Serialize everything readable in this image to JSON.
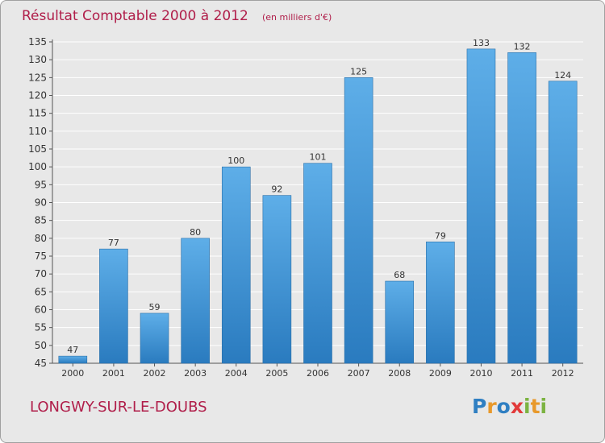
{
  "commune": "LONGWY-SUR-LE-DOUBS",
  "logo": {
    "text": "Proxiti",
    "letters": [
      {
        "ch": "P",
        "color": "#2f7fc2"
      },
      {
        "ch": "r",
        "color": "#e8992b"
      },
      {
        "ch": "o",
        "color": "#2f7fc2"
      },
      {
        "ch": "x",
        "color": "#e23a3a"
      },
      {
        "ch": "i",
        "color": "#7cb342"
      },
      {
        "ch": "t",
        "color": "#e8992b"
      },
      {
        "ch": "i",
        "color": "#7cb342"
      }
    ]
  },
  "colors": {
    "bar_light": "#5eaee8",
    "bar_dark": "#2a7bbf",
    "title": "#b01e4a",
    "background": "#e8e8e8",
    "grid": "#ffffff"
  },
  "chart_data": {
    "type": "bar",
    "title": "Résultat Comptable 2000 à 2012",
    "unit_note": "(en milliers d'€)",
    "categories": [
      "2000",
      "2001",
      "2002",
      "2003",
      "2004",
      "2005",
      "2006",
      "2007",
      "2008",
      "2009",
      "2010",
      "2011",
      "2012"
    ],
    "values": [
      47,
      77,
      59,
      80,
      100,
      92,
      101,
      125,
      68,
      79,
      133,
      132,
      124
    ],
    "ylim": [
      45,
      135
    ],
    "yticks": [
      45,
      50,
      55,
      60,
      65,
      70,
      75,
      80,
      85,
      90,
      95,
      100,
      105,
      110,
      115,
      120,
      125,
      130,
      135
    ],
    "grid": true,
    "xlabel": "",
    "ylabel": ""
  }
}
